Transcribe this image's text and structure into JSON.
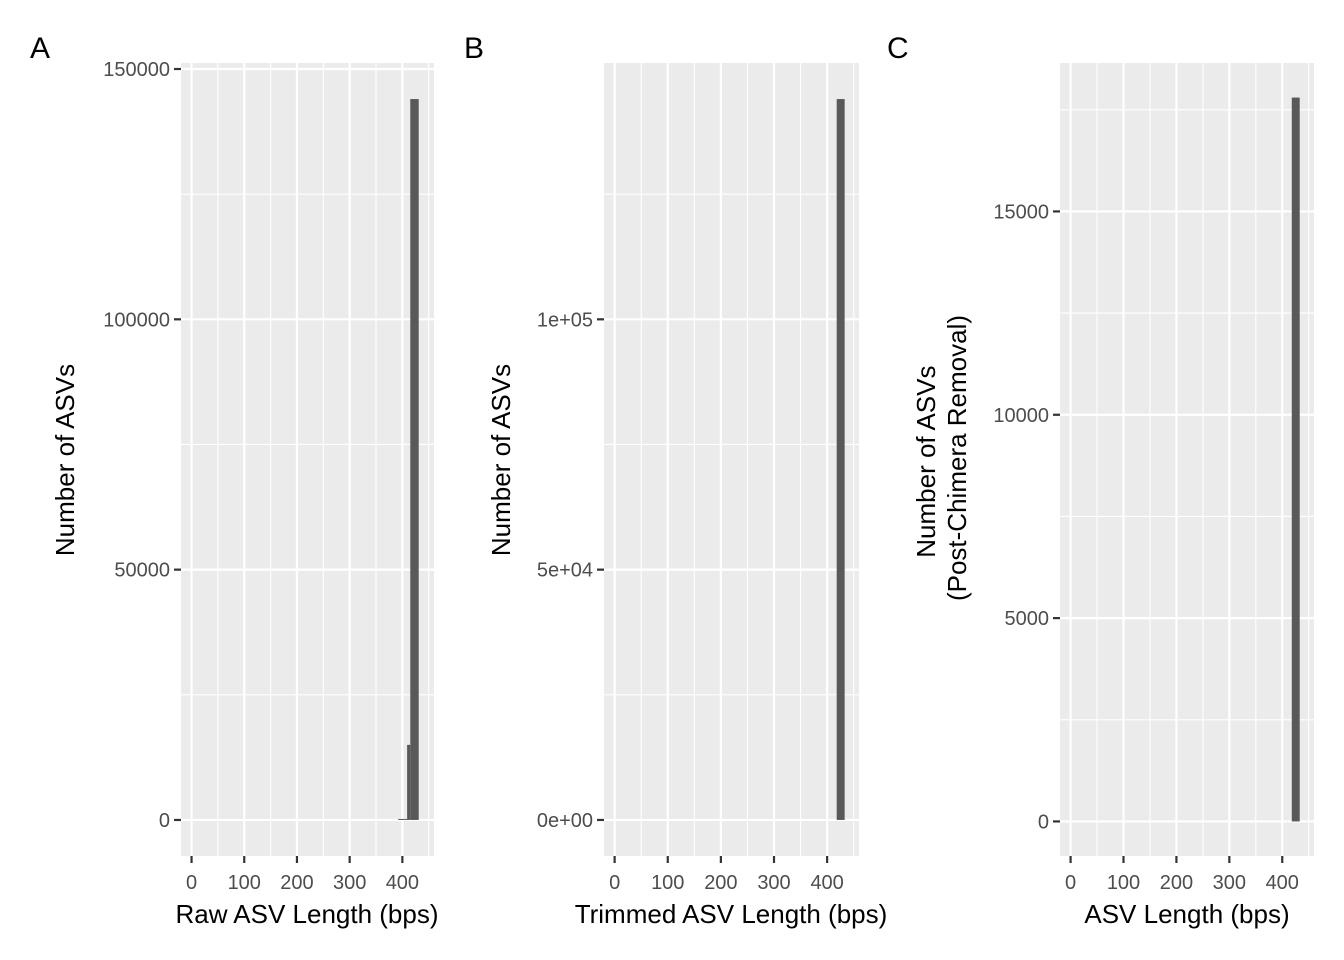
{
  "chart_data": [
    {
      "panel_label": "A",
      "type": "bar",
      "xlabel": "Raw ASV Length (bps)",
      "ylabel": [
        "Number of ASVs"
      ],
      "xlim": [
        -20,
        460
      ],
      "ylim": [
        -7200,
        151200
      ],
      "xticks": [
        0,
        100,
        200,
        300,
        400
      ],
      "yticks": [
        0,
        50000,
        100000,
        150000
      ],
      "ytick_labels": [
        "0",
        "50000",
        "100000",
        "150000"
      ],
      "bins": [
        {
          "x0": 392,
          "x1": 409,
          "count": 200
        },
        {
          "x0": 409,
          "x1": 415,
          "count": 15000
        },
        {
          "x0": 415,
          "x1": 431,
          "count": 144000
        }
      ],
      "grid": true
    },
    {
      "panel_label": "B",
      "type": "bar",
      "xlabel": "Trimmed ASV Length (bps)",
      "ylabel": [
        "Number of ASVs"
      ],
      "xlim": [
        -20,
        460
      ],
      "ylim": [
        -7200,
        151200
      ],
      "xticks": [
        0,
        100,
        200,
        300,
        400
      ],
      "yticks": [
        0,
        50000,
        100000
      ],
      "ytick_labels": [
        "0e+00",
        "5e+04",
        "1e+05"
      ],
      "bins": [
        {
          "x0": 418,
          "x1": 433,
          "count": 144000
        }
      ],
      "grid": true
    },
    {
      "panel_label": "C",
      "type": "bar",
      "xlabel": "ASV Length (bps)",
      "ylabel": [
        "Number of ASVs",
        "(Post-Chimera Removal)"
      ],
      "xlim": [
        -20,
        460
      ],
      "ylim": [
        -850,
        18650
      ],
      "xticks": [
        0,
        100,
        200,
        300,
        400
      ],
      "yticks": [
        0,
        5000,
        10000,
        15000
      ],
      "ytick_labels": [
        "0",
        "5000",
        "10000",
        "15000"
      ],
      "bins": [
        {
          "x0": 418,
          "x1": 433,
          "count": 17800
        }
      ],
      "grid": true
    }
  ],
  "colors": {
    "panel_background": "#ebebeb",
    "grid": "#ffffff",
    "bar_fill": "#595959",
    "tick_text": "#4d4d4d",
    "axis_title": "#000000"
  }
}
